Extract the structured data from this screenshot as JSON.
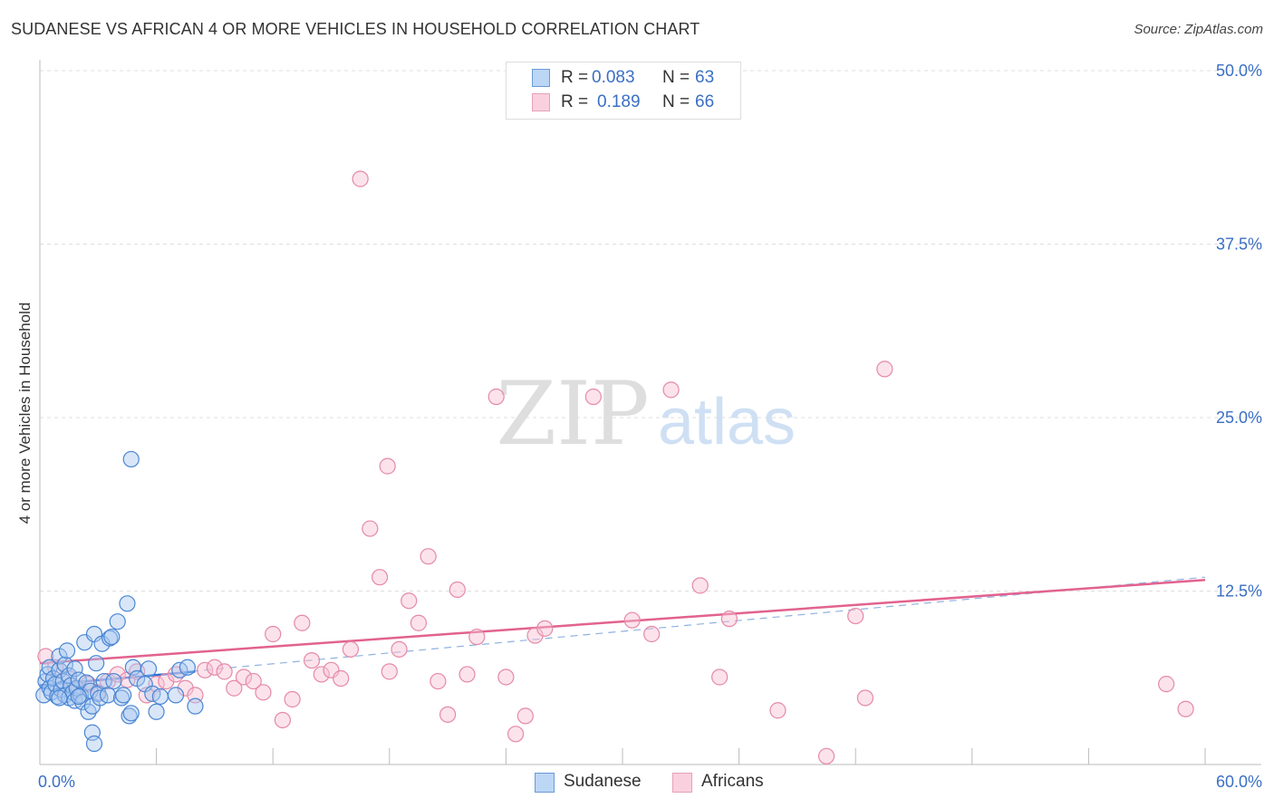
{
  "title": "SUDANESE VS AFRICAN 4 OR MORE VEHICLES IN HOUSEHOLD CORRELATION CHART",
  "source": "Source: ZipAtlas.com",
  "watermark": {
    "zip": "ZIP",
    "atlas": "atlas"
  },
  "legend": {
    "r_label": "R =",
    "n_label": "N =",
    "rows": [
      {
        "r": "0.083",
        "n": "63"
      },
      {
        "r": "0.189",
        "n": "66"
      }
    ]
  },
  "colors": {
    "sudanese_fill": "#a8c8f0",
    "sudanese_stroke": "#4a86d4",
    "sudanese_line": "#2a6fd6",
    "africans_fill": "#f8c0d2",
    "africans_stroke": "#e589a8",
    "africans_line": "#e2628e",
    "axis_text": "#3a6fc4",
    "grid": "#dddddd"
  },
  "chart_data": {
    "type": "scatter",
    "title": "SUDANESE VS AFRICAN 4 OR MORE VEHICLES IN HOUSEHOLD CORRELATION CHART",
    "xlabel": "",
    "ylabel": "4 or more Vehicles in Household",
    "xlim": [
      0,
      60
    ],
    "ylim": [
      0,
      50
    ],
    "x_tick_labels": [
      "0.0%",
      "60.0%"
    ],
    "y_ticks": [
      12.5,
      25.0,
      37.5,
      50.0
    ],
    "y_tick_labels": [
      "12.5%",
      "25.0%",
      "37.5%",
      "50.0%"
    ],
    "grid": true,
    "legend_position": "top-center",
    "series": [
      {
        "name": "Sudanese",
        "r": 0.083,
        "n": 63,
        "trend": {
          "x": [
            0,
            8
          ],
          "y": [
            5.7,
            6.7
          ]
        },
        "trend_extended": {
          "x": [
            0,
            60
          ],
          "y": [
            5.7,
            13.5
          ]
        },
        "points": [
          [
            0.2,
            5.0
          ],
          [
            0.3,
            6.0
          ],
          [
            0.4,
            6.5
          ],
          [
            0.5,
            5.5
          ],
          [
            0.5,
            7.0
          ],
          [
            0.6,
            5.2
          ],
          [
            0.7,
            6.2
          ],
          [
            0.8,
            5.8
          ],
          [
            0.9,
            4.9
          ],
          [
            1.0,
            6.8
          ],
          [
            1.0,
            7.8
          ],
          [
            1.1,
            5.4
          ],
          [
            1.2,
            6.0
          ],
          [
            1.3,
            5.0
          ],
          [
            1.3,
            7.2
          ],
          [
            1.4,
            8.2
          ],
          [
            1.5,
            4.8
          ],
          [
            1.5,
            6.4
          ],
          [
            1.6,
            5.7
          ],
          [
            1.7,
            5.2
          ],
          [
            1.8,
            6.9
          ],
          [
            1.8,
            4.6
          ],
          [
            1.9,
            5.5
          ],
          [
            2.0,
            6.1
          ],
          [
            2.1,
            5.0
          ],
          [
            2.2,
            4.5
          ],
          [
            2.3,
            8.8
          ],
          [
            2.4,
            5.9
          ],
          [
            2.5,
            3.8
          ],
          [
            2.6,
            5.3
          ],
          [
            2.7,
            4.2
          ],
          [
            2.8,
            9.4
          ],
          [
            2.9,
            7.3
          ],
          [
            3.0,
            5.1
          ],
          [
            3.1,
            4.8
          ],
          [
            3.2,
            8.7
          ],
          [
            3.3,
            6.0
          ],
          [
            3.5,
            5.0
          ],
          [
            3.6,
            9.1
          ],
          [
            3.7,
            9.2
          ],
          [
            3.8,
            6.0
          ],
          [
            4.0,
            10.3
          ],
          [
            4.2,
            4.8
          ],
          [
            4.3,
            5.0
          ],
          [
            4.5,
            11.6
          ],
          [
            4.6,
            3.5
          ],
          [
            4.8,
            7.0
          ],
          [
            5.0,
            6.2
          ],
          [
            5.4,
            5.8
          ],
          [
            5.6,
            6.9
          ],
          [
            5.8,
            5.1
          ],
          [
            6.0,
            3.8
          ],
          [
            6.2,
            4.9
          ],
          [
            7.0,
            5.0
          ],
          [
            7.2,
            6.8
          ],
          [
            7.6,
            7.0
          ],
          [
            8.0,
            4.2
          ],
          [
            2.0,
            4.9
          ],
          [
            1.0,
            4.8
          ],
          [
            2.7,
            2.3
          ],
          [
            4.7,
            3.7
          ],
          [
            2.8,
            1.5
          ],
          [
            4.7,
            22.0
          ]
        ]
      },
      {
        "name": "Africans",
        "r": 0.189,
        "n": 66,
        "trend": {
          "x": [
            0,
            60
          ],
          "y": [
            7.3,
            13.3
          ]
        },
        "points": [
          [
            0.3,
            7.8
          ],
          [
            0.8,
            7.0
          ],
          [
            1.5,
            6.2
          ],
          [
            2.0,
            5.5
          ],
          [
            2.5,
            5.8
          ],
          [
            3.0,
            5.2
          ],
          [
            3.5,
            6.0
          ],
          [
            4.0,
            6.5
          ],
          [
            4.5,
            6.1
          ],
          [
            5.0,
            6.7
          ],
          [
            5.5,
            5.0
          ],
          [
            6.0,
            5.8
          ],
          [
            6.5,
            6.0
          ],
          [
            7.0,
            6.5
          ],
          [
            7.5,
            5.5
          ],
          [
            8.0,
            5.0
          ],
          [
            8.5,
            6.8
          ],
          [
            9.0,
            7.0
          ],
          [
            9.5,
            6.7
          ],
          [
            10.0,
            5.5
          ],
          [
            10.5,
            6.3
          ],
          [
            11.0,
            6.0
          ],
          [
            11.5,
            5.2
          ],
          [
            12.0,
            9.4
          ],
          [
            12.5,
            3.2
          ],
          [
            13.0,
            4.7
          ],
          [
            13.5,
            10.2
          ],
          [
            14.0,
            7.5
          ],
          [
            14.5,
            6.5
          ],
          [
            15.0,
            6.8
          ],
          [
            15.5,
            6.2
          ],
          [
            16.0,
            8.3
          ],
          [
            16.5,
            42.2
          ],
          [
            17.0,
            17.0
          ],
          [
            17.5,
            13.5
          ],
          [
            17.9,
            21.5
          ],
          [
            18.0,
            6.7
          ],
          [
            18.5,
            8.3
          ],
          [
            19.0,
            11.8
          ],
          [
            19.5,
            10.2
          ],
          [
            20.0,
            15.0
          ],
          [
            20.5,
            6.0
          ],
          [
            21.0,
            3.6
          ],
          [
            21.5,
            12.6
          ],
          [
            22.0,
            6.5
          ],
          [
            22.5,
            9.2
          ],
          [
            23.5,
            26.5
          ],
          [
            24.0,
            6.3
          ],
          [
            24.5,
            2.2
          ],
          [
            25.0,
            3.5
          ],
          [
            25.5,
            9.3
          ],
          [
            26.0,
            9.8
          ],
          [
            28.5,
            26.5
          ],
          [
            30.5,
            10.4
          ],
          [
            31.5,
            9.4
          ],
          [
            32.5,
            27.0
          ],
          [
            34.0,
            12.9
          ],
          [
            35.0,
            6.3
          ],
          [
            35.5,
            10.5
          ],
          [
            38.0,
            3.9
          ],
          [
            40.5,
            0.6
          ],
          [
            42.0,
            10.7
          ],
          [
            42.5,
            4.8
          ],
          [
            43.5,
            28.5
          ],
          [
            58.0,
            5.8
          ],
          [
            59.0,
            4.0
          ]
        ]
      }
    ]
  },
  "bottom_legend": [
    "Sudanese",
    "Africans"
  ]
}
